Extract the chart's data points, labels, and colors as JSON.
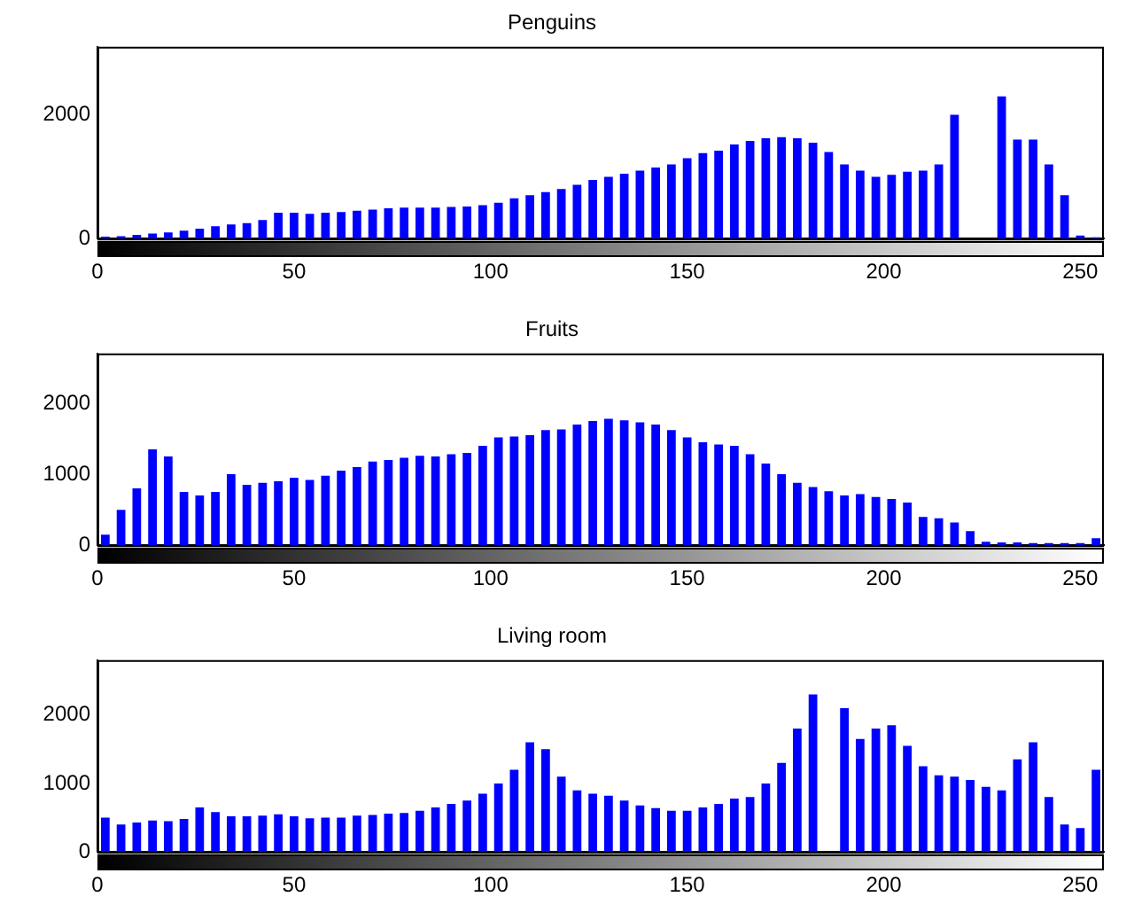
{
  "chart_data": [
    {
      "type": "histogram",
      "title": "Penguins",
      "color": "#0000ff",
      "bins": [
        0,
        4,
        8,
        12,
        16,
        20,
        24,
        28,
        32,
        36,
        40,
        44,
        48,
        52,
        56,
        60,
        64,
        68,
        72,
        76,
        80,
        84,
        88,
        92,
        96,
        100,
        104,
        108,
        112,
        116,
        120,
        124,
        128,
        132,
        136,
        140,
        144,
        148,
        152,
        156,
        160,
        164,
        168,
        172,
        176,
        180,
        184,
        188,
        192,
        196,
        200,
        204,
        208,
        212,
        216,
        220,
        224,
        228,
        232,
        236,
        240,
        244,
        248,
        252,
        256
      ],
      "values": [
        30,
        40,
        60,
        80,
        100,
        130,
        160,
        200,
        230,
        250,
        300,
        420,
        420,
        400,
        420,
        430,
        450,
        470,
        490,
        500,
        500,
        500,
        510,
        520,
        540,
        580,
        650,
        700,
        750,
        800,
        870,
        950,
        1000,
        1050,
        1100,
        1150,
        1200,
        1300,
        1380,
        1420,
        1520,
        1580,
        1620,
        1640,
        1620,
        1550,
        1400,
        1200,
        1100,
        1000,
        1030,
        1080,
        1100,
        1200,
        2000,
        null,
        null,
        2300,
        1600,
        1600,
        1200,
        700,
        50,
        20
      ],
      "xlim": [
        0,
        256
      ],
      "xticks": [
        0,
        50,
        100,
        150,
        200,
        250
      ],
      "ylim": [
        0,
        3100
      ],
      "yticks": [
        0,
        2000
      ]
    },
    {
      "type": "histogram",
      "title": "Fruits",
      "color": "#0000ff",
      "bins": [
        0,
        4,
        8,
        12,
        16,
        20,
        24,
        28,
        32,
        36,
        40,
        44,
        48,
        52,
        56,
        60,
        64,
        68,
        72,
        76,
        80,
        84,
        88,
        92,
        96,
        100,
        104,
        108,
        112,
        116,
        120,
        124,
        128,
        132,
        136,
        140,
        144,
        148,
        152,
        156,
        160,
        164,
        168,
        172,
        176,
        180,
        184,
        188,
        192,
        196,
        200,
        204,
        208,
        212,
        216,
        220,
        224,
        228,
        232,
        236,
        240,
        244,
        248,
        252,
        256
      ],
      "values": [
        150,
        500,
        800,
        1350,
        1250,
        750,
        700,
        750,
        1000,
        850,
        880,
        900,
        950,
        920,
        980,
        1050,
        1100,
        1180,
        1200,
        1230,
        1260,
        1250,
        1280,
        1300,
        1400,
        1520,
        1530,
        1550,
        1620,
        1630,
        1700,
        1750,
        1780,
        1760,
        1730,
        1700,
        1620,
        1520,
        1450,
        1420,
        1400,
        1280,
        1150,
        1000,
        880,
        820,
        760,
        700,
        720,
        680,
        650,
        600,
        400,
        380,
        320,
        200,
        50,
        40,
        40,
        30,
        30,
        30,
        30,
        100
      ],
      "xlim": [
        0,
        256
      ],
      "xticks": [
        0,
        50,
        100,
        150,
        200,
        250
      ],
      "ylim": [
        0,
        2700
      ],
      "yticks": [
        0,
        1000,
        2000
      ]
    },
    {
      "type": "histogram",
      "title": "Living room",
      "color": "#0000ff",
      "bins": [
        0,
        4,
        8,
        12,
        16,
        20,
        24,
        28,
        32,
        36,
        40,
        44,
        48,
        52,
        56,
        60,
        64,
        68,
        72,
        76,
        80,
        84,
        88,
        92,
        96,
        100,
        104,
        108,
        112,
        116,
        120,
        124,
        128,
        132,
        136,
        140,
        144,
        148,
        152,
        156,
        160,
        164,
        168,
        172,
        176,
        180,
        184,
        188,
        192,
        196,
        200,
        204,
        208,
        212,
        216,
        220,
        224,
        228,
        232,
        236,
        240,
        244,
        248,
        252,
        256
      ],
      "values": [
        500,
        400,
        430,
        460,
        450,
        480,
        650,
        580,
        520,
        520,
        530,
        550,
        520,
        490,
        500,
        500,
        530,
        540,
        560,
        570,
        600,
        650,
        700,
        750,
        850,
        1000,
        1200,
        1600,
        1500,
        1100,
        900,
        850,
        820,
        750,
        680,
        640,
        600,
        600,
        650,
        700,
        780,
        800,
        1000,
        1300,
        1800,
        2300,
        null,
        2100,
        1650,
        1800,
        1850,
        1550,
        1250,
        1120,
        1100,
        1050,
        950,
        900,
        1350,
        1600,
        800,
        400,
        350,
        1200
      ],
      "xlim": [
        0,
        256
      ],
      "xticks": [
        0,
        50,
        100,
        150,
        200,
        250
      ],
      "ylim": [
        0,
        2800
      ],
      "yticks": [
        0,
        1000,
        2000
      ]
    }
  ]
}
